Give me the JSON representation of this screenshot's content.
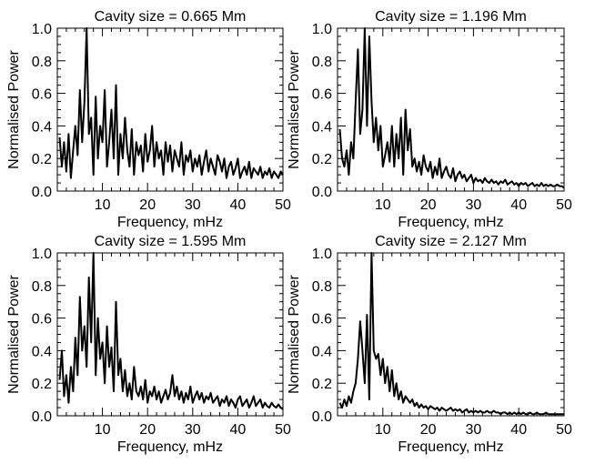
{
  "chart_data": [
    {
      "type": "line",
      "title": "Cavity size = 0.665 Mm",
      "xlabel": "Frequency, mHz",
      "ylabel": "Normalised Power",
      "xlim": [
        0,
        50
      ],
      "ylim": [
        0,
        1.0
      ],
      "xticks": [
        "10",
        "20",
        "30",
        "40",
        "50"
      ],
      "yticks": [
        "0.0",
        "0.2",
        "0.4",
        "0.6",
        "0.8",
        "1.0"
      ],
      "x": [
        0.5,
        1.0,
        1.5,
        2.0,
        2.5,
        3.0,
        3.5,
        4.0,
        4.5,
        5.0,
        5.5,
        6.0,
        6.5,
        7.0,
        7.5,
        8.0,
        8.5,
        9.0,
        9.5,
        10.0,
        10.5,
        11.0,
        11.5,
        12.0,
        12.5,
        13.0,
        13.5,
        14.0,
        14.5,
        15.0,
        15.5,
        16.0,
        16.5,
        17.0,
        17.5,
        18.0,
        18.5,
        19.0,
        19.5,
        20.0,
        20.5,
        21.0,
        21.5,
        22.0,
        22.5,
        23.0,
        23.5,
        24.0,
        24.5,
        25.0,
        25.5,
        26.0,
        26.5,
        27.0,
        27.5,
        28.0,
        28.5,
        29.0,
        29.5,
        30.0,
        30.5,
        31.0,
        31.5,
        32.0,
        32.5,
        33.0,
        33.5,
        34.0,
        34.5,
        35.0,
        35.5,
        36.0,
        36.5,
        37.0,
        37.5,
        38.0,
        38.5,
        39.0,
        39.5,
        40.0,
        40.5,
        41.0,
        41.5,
        42.0,
        42.5,
        43.0,
        43.5,
        44.0,
        44.5,
        45.0,
        45.5,
        46.0,
        46.5,
        47.0,
        47.5,
        48.0,
        48.5,
        49.0,
        49.5,
        50.0
      ],
      "y": [
        0.33,
        0.15,
        0.3,
        0.12,
        0.35,
        0.08,
        0.25,
        0.4,
        0.22,
        0.62,
        0.3,
        0.55,
        1.0,
        0.35,
        0.45,
        0.1,
        0.58,
        0.2,
        0.4,
        0.3,
        0.62,
        0.15,
        0.3,
        0.5,
        0.2,
        0.65,
        0.1,
        0.35,
        0.2,
        0.45,
        0.25,
        0.15,
        0.38,
        0.1,
        0.3,
        0.22,
        0.28,
        0.12,
        0.35,
        0.18,
        0.25,
        0.4,
        0.15,
        0.3,
        0.2,
        0.25,
        0.1,
        0.3,
        0.18,
        0.28,
        0.12,
        0.25,
        0.2,
        0.15,
        0.3,
        0.1,
        0.22,
        0.18,
        0.25,
        0.12,
        0.2,
        0.15,
        0.22,
        0.1,
        0.18,
        0.25,
        0.12,
        0.2,
        0.15,
        0.1,
        0.22,
        0.18,
        0.12,
        0.2,
        0.08,
        0.15,
        0.18,
        0.1,
        0.14,
        0.2,
        0.08,
        0.12,
        0.15,
        0.1,
        0.18,
        0.08,
        0.14,
        0.12,
        0.1,
        0.15,
        0.08,
        0.12,
        0.1,
        0.14,
        0.08,
        0.12,
        0.1,
        0.08,
        0.12,
        0.1
      ]
    },
    {
      "type": "line",
      "title": "Cavity size = 1.196 Mm",
      "xlabel": "Frequency, mHz",
      "ylabel": "Normalised Power",
      "xlim": [
        0,
        50
      ],
      "ylim": [
        0,
        1.0
      ],
      "xticks": [
        "10",
        "20",
        "30",
        "40",
        "50"
      ],
      "yticks": [
        "0.0",
        "0.2",
        "0.4",
        "0.6",
        "0.8",
        "1.0"
      ],
      "x": [
        0.5,
        1.0,
        1.5,
        2.0,
        2.5,
        3.0,
        3.5,
        4.0,
        4.5,
        5.0,
        5.5,
        6.0,
        6.5,
        7.0,
        7.5,
        8.0,
        8.5,
        9.0,
        9.5,
        10.0,
        10.5,
        11.0,
        11.5,
        12.0,
        12.5,
        13.0,
        13.5,
        14.0,
        14.5,
        15.0,
        15.5,
        16.0,
        16.5,
        17.0,
        17.5,
        18.0,
        18.5,
        19.0,
        19.5,
        20.0,
        20.5,
        21.0,
        21.5,
        22.0,
        22.5,
        23.0,
        23.5,
        24.0,
        24.5,
        25.0,
        25.5,
        26.0,
        26.5,
        27.0,
        27.5,
        28.0,
        28.5,
        29.0,
        29.5,
        30.0,
        30.5,
        31.0,
        31.5,
        32.0,
        32.5,
        33.0,
        33.5,
        34.0,
        34.5,
        35.0,
        35.5,
        36.0,
        36.5,
        37.0,
        37.5,
        38.0,
        38.5,
        39.0,
        39.5,
        40.0,
        40.5,
        41.0,
        41.5,
        42.0,
        42.5,
        43.0,
        43.5,
        44.0,
        44.5,
        45.0,
        45.5,
        46.0,
        46.5,
        47.0,
        47.5,
        48.0,
        48.5,
        49.0,
        49.5,
        50.0
      ],
      "y": [
        0.38,
        0.2,
        0.15,
        0.25,
        0.1,
        0.3,
        0.2,
        0.55,
        0.87,
        0.35,
        0.5,
        1.0,
        0.4,
        0.95,
        0.55,
        0.3,
        0.45,
        0.25,
        0.4,
        0.15,
        0.22,
        0.3,
        0.18,
        0.4,
        0.15,
        0.35,
        0.2,
        0.45,
        0.1,
        0.5,
        0.25,
        0.38,
        0.15,
        0.2,
        0.12,
        0.18,
        0.1,
        0.22,
        0.15,
        0.12,
        0.18,
        0.08,
        0.15,
        0.1,
        0.2,
        0.08,
        0.12,
        0.15,
        0.1,
        0.08,
        0.14,
        0.06,
        0.1,
        0.12,
        0.08,
        0.1,
        0.06,
        0.08,
        0.1,
        0.05,
        0.08,
        0.06,
        0.07,
        0.05,
        0.08,
        0.06,
        0.05,
        0.07,
        0.05,
        0.06,
        0.04,
        0.06,
        0.05,
        0.07,
        0.04,
        0.05,
        0.06,
        0.04,
        0.05,
        0.03,
        0.05,
        0.04,
        0.05,
        0.03,
        0.04,
        0.05,
        0.03,
        0.04,
        0.03,
        0.05,
        0.03,
        0.04,
        0.03,
        0.04,
        0.03,
        0.03,
        0.04,
        0.03,
        0.03,
        0.02
      ]
    },
    {
      "type": "line",
      "title": "Cavity size = 1.595 Mm",
      "xlabel": "Frequency, mHz",
      "ylabel": "Normalised Power",
      "xlim": [
        0,
        50
      ],
      "ylim": [
        0,
        1.0
      ],
      "xticks": [
        "10",
        "20",
        "30",
        "40",
        "50"
      ],
      "yticks": [
        "0.0",
        "0.2",
        "0.4",
        "0.6",
        "0.8",
        "1.0"
      ],
      "x": [
        0.5,
        1.0,
        1.5,
        2.0,
        2.5,
        3.0,
        3.5,
        4.0,
        4.5,
        5.0,
        5.5,
        6.0,
        6.5,
        7.0,
        7.5,
        8.0,
        8.5,
        9.0,
        9.5,
        10.0,
        10.5,
        11.0,
        11.5,
        12.0,
        12.5,
        13.0,
        13.5,
        14.0,
        14.5,
        15.0,
        15.5,
        16.0,
        16.5,
        17.0,
        17.5,
        18.0,
        18.5,
        19.0,
        19.5,
        20.0,
        20.5,
        21.0,
        21.5,
        22.0,
        22.5,
        23.0,
        23.5,
        24.0,
        24.5,
        25.0,
        25.5,
        26.0,
        26.5,
        27.0,
        27.5,
        28.0,
        28.5,
        29.0,
        29.5,
        30.0,
        30.5,
        31.0,
        31.5,
        32.0,
        32.5,
        33.0,
        33.5,
        34.0,
        34.5,
        35.0,
        35.5,
        36.0,
        36.5,
        37.0,
        37.5,
        38.0,
        38.5,
        39.0,
        39.5,
        40.0,
        40.5,
        41.0,
        41.5,
        42.0,
        42.5,
        43.0,
        43.5,
        44.0,
        44.5,
        45.0,
        45.5,
        46.0,
        46.5,
        47.0,
        47.5,
        48.0,
        48.5,
        49.0,
        49.5,
        50.0
      ],
      "y": [
        0.22,
        0.4,
        0.12,
        0.25,
        0.08,
        0.3,
        0.15,
        0.48,
        0.25,
        0.73,
        0.4,
        0.55,
        0.3,
        0.85,
        0.45,
        1.0,
        0.25,
        0.6,
        0.35,
        0.45,
        0.2,
        0.55,
        0.3,
        0.42,
        0.15,
        0.7,
        0.25,
        0.35,
        0.15,
        0.28,
        0.12,
        0.2,
        0.1,
        0.3,
        0.15,
        0.12,
        0.18,
        0.1,
        0.22,
        0.08,
        0.15,
        0.12,
        0.18,
        0.1,
        0.15,
        0.08,
        0.12,
        0.16,
        0.1,
        0.14,
        0.25,
        0.12,
        0.18,
        0.1,
        0.15,
        0.08,
        0.14,
        0.1,
        0.18,
        0.08,
        0.12,
        0.15,
        0.1,
        0.14,
        0.08,
        0.12,
        0.1,
        0.14,
        0.08,
        0.1,
        0.12,
        0.06,
        0.1,
        0.08,
        0.12,
        0.06,
        0.1,
        0.08,
        0.05,
        0.1,
        0.12,
        0.06,
        0.08,
        0.1,
        0.05,
        0.08,
        0.12,
        0.06,
        0.08,
        0.1,
        0.05,
        0.08,
        0.06,
        0.05,
        0.08,
        0.06,
        0.05,
        0.07,
        0.05,
        0.04
      ]
    },
    {
      "type": "line",
      "title": "Cavity size = 2.127 Mm",
      "xlabel": "Frequency, mHz",
      "ylabel": "Normalised Power",
      "xlim": [
        0,
        50
      ],
      "ylim": [
        0,
        1.0
      ],
      "xticks": [
        "10",
        "20",
        "30",
        "40",
        "50"
      ],
      "yticks": [
        "0.0",
        "0.2",
        "0.4",
        "0.6",
        "0.8",
        "1.0"
      ],
      "x": [
        0.5,
        1.0,
        1.5,
        2.0,
        2.5,
        3.0,
        3.5,
        4.0,
        4.5,
        5.0,
        5.5,
        6.0,
        6.5,
        7.0,
        7.5,
        8.0,
        8.5,
        9.0,
        9.5,
        10.0,
        10.5,
        11.0,
        11.5,
        12.0,
        12.5,
        13.0,
        13.5,
        14.0,
        14.5,
        15.0,
        15.5,
        16.0,
        16.5,
        17.0,
        17.5,
        18.0,
        18.5,
        19.0,
        19.5,
        20.0,
        20.5,
        21.0,
        21.5,
        22.0,
        22.5,
        23.0,
        23.5,
        24.0,
        24.5,
        25.0,
        25.5,
        26.0,
        26.5,
        27.0,
        27.5,
        28.0,
        28.5,
        29.0,
        29.5,
        30.0,
        30.5,
        31.0,
        31.5,
        32.0,
        32.5,
        33.0,
        33.5,
        34.0,
        34.5,
        35.0,
        35.5,
        36.0,
        36.5,
        37.0,
        37.5,
        38.0,
        38.5,
        39.0,
        39.5,
        40.0,
        40.5,
        41.0,
        41.5,
        42.0,
        42.5,
        43.0,
        43.5,
        44.0,
        44.5,
        45.0,
        45.5,
        46.0,
        46.5,
        47.0,
        47.5,
        48.0,
        48.5,
        49.0,
        49.5,
        50.0
      ],
      "y": [
        0.08,
        0.05,
        0.1,
        0.06,
        0.12,
        0.08,
        0.15,
        0.2,
        0.35,
        0.58,
        0.4,
        0.2,
        0.62,
        0.1,
        1.0,
        0.4,
        0.35,
        0.38,
        0.25,
        0.35,
        0.2,
        0.3,
        0.15,
        0.28,
        0.12,
        0.2,
        0.1,
        0.15,
        0.08,
        0.12,
        0.1,
        0.08,
        0.1,
        0.06,
        0.08,
        0.05,
        0.07,
        0.05,
        0.06,
        0.04,
        0.06,
        0.05,
        0.04,
        0.05,
        0.03,
        0.05,
        0.04,
        0.03,
        0.04,
        0.05,
        0.03,
        0.04,
        0.03,
        0.04,
        0.02,
        0.03,
        0.04,
        0.02,
        0.03,
        0.02,
        0.03,
        0.02,
        0.03,
        0.02,
        0.02,
        0.03,
        0.02,
        0.02,
        0.03,
        0.02,
        0.02,
        0.01,
        0.02,
        0.02,
        0.01,
        0.02,
        0.01,
        0.02,
        0.01,
        0.02,
        0.01,
        0.02,
        0.01,
        0.01,
        0.02,
        0.01,
        0.01,
        0.02,
        0.01,
        0.01,
        0.01,
        0.02,
        0.01,
        0.01,
        0.01,
        0.01,
        0.01,
        0.01,
        0.01,
        0.01
      ]
    }
  ]
}
